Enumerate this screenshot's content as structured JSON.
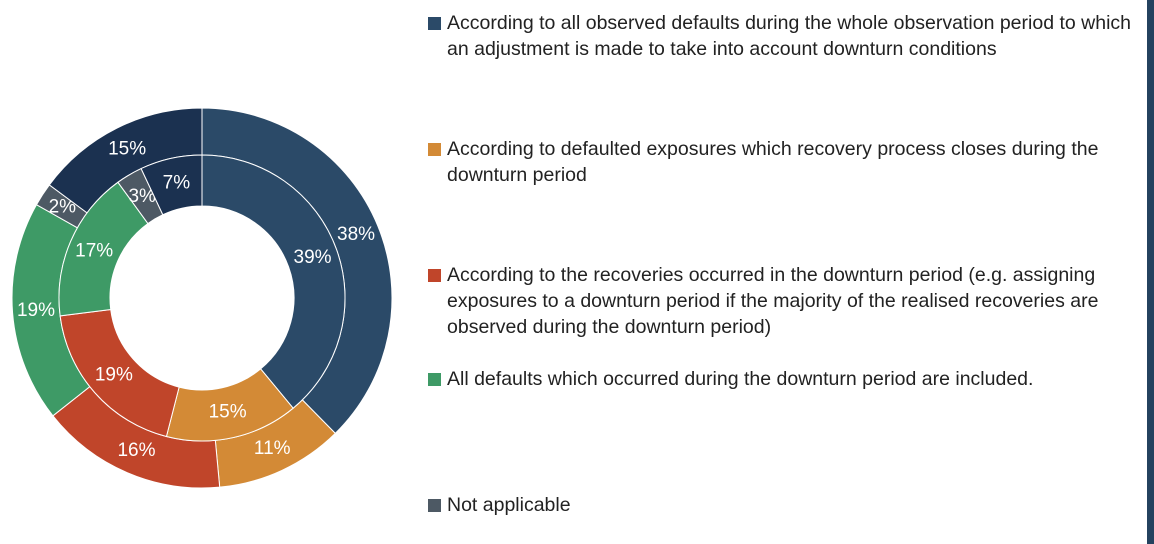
{
  "chart_data": {
    "type": "pie",
    "categories": [
      "According to all observed defaults during the whole observation period to which an adjustment is made to take into account downturn conditions",
      "According to defaulted exposures which recovery process closes during the downturn period",
      "According to the recoveries occurred in the downturn period (e.g. assigning exposures to a downturn period if the majority of the realised recoveries are observed during the downturn period)",
      "All defaults which occurred during the downturn period are included.",
      "Not applicable",
      null
    ],
    "colors": [
      "#2b4a68",
      "#d38a36",
      "#c0452a",
      "#3e9a66",
      "#4d5964",
      "#1b3150"
    ],
    "series": [
      {
        "values": [
          38,
          11,
          16,
          19,
          2,
          15
        ],
        "value_labels": [
          "38%",
          "11%",
          "16%",
          "19%",
          "2%",
          "15%"
        ]
      },
      {
        "values": [
          39,
          15,
          19,
          17,
          3,
          7
        ],
        "value_labels": [
          "39%",
          "15%",
          "19%",
          "17%",
          "3%",
          "7%"
        ]
      }
    ]
  }
}
